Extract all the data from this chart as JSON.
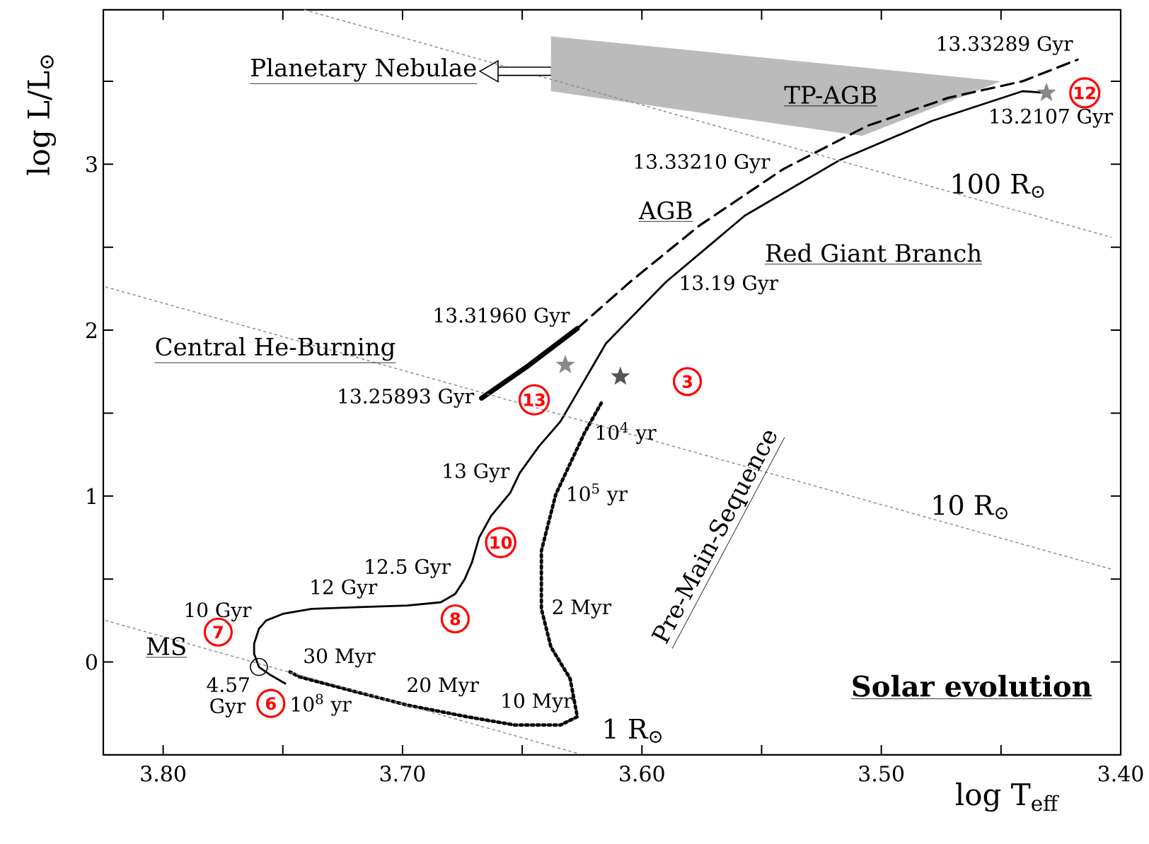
{
  "chart_data": {
    "type": "line",
    "xlabel": "log T$_{eff}$",
    "ylabel": "log L/L$_{⊙}$",
    "xlim": [
      3.825,
      3.4
    ],
    "ylim": [
      -0.56,
      3.93
    ],
    "xticks": [
      {
        "value": 3.8,
        "label": "3.80"
      },
      {
        "value": 3.75,
        "label": null
      },
      {
        "value": 3.7,
        "label": "3.70"
      },
      {
        "value": 3.65,
        "label": null
      },
      {
        "value": 3.6,
        "label": "3.60"
      },
      {
        "value": 3.55,
        "label": null
      },
      {
        "value": 3.5,
        "label": "3.50"
      },
      {
        "value": 3.45,
        "label": null
      },
      {
        "value": 3.4,
        "label": "3.40"
      }
    ],
    "yticks": [
      0,
      {
        "value": 0.5,
        "label": null
      },
      1,
      {
        "value": 1.5,
        "label": null
      },
      2,
      {
        "value": 2.5,
        "label": null
      },
      3,
      {
        "value": 3.5,
        "label": null
      }
    ],
    "series": [
      {
        "color": "#000000",
        "line_style": "solid",
        "x": [
          3.749,
          3.755,
          3.76,
          3.762,
          3.762,
          3.76,
          3.757,
          3.75,
          3.738,
          3.72,
          3.698,
          3.684,
          3.678,
          3.674,
          3.671,
          3.668,
          3.663,
          3.655,
          3.651,
          3.643,
          3.634,
          3.615,
          3.59,
          3.557,
          3.518,
          3.479,
          3.441,
          3.431
        ],
        "values": [
          -0.13,
          -0.08,
          -0.03,
          0.05,
          0.11,
          0.2,
          0.25,
          0.29,
          0.32,
          0.33,
          0.34,
          0.36,
          0.41,
          0.5,
          0.6,
          0.75,
          0.88,
          1.02,
          1.14,
          1.3,
          1.45,
          1.92,
          2.29,
          2.69,
          3.02,
          3.26,
          3.44,
          3.43
        ]
      },
      {
        "color": "#000000",
        "line_style": "solid",
        "x": [
          3.667,
          3.648,
          3.627
        ],
        "values": [
          1.59,
          1.78,
          2.01
        ]
      },
      {
        "color": "#000000",
        "line_style": "dashed",
        "x": [
          3.627,
          3.605,
          3.576,
          3.541,
          3.506,
          3.472,
          3.441,
          3.418
        ],
        "values": [
          2.01,
          2.29,
          2.63,
          2.97,
          3.23,
          3.4,
          3.5,
          3.63
        ]
      },
      {
        "color": "#000000",
        "line_style": "dotted",
        "x": [
          3.617,
          3.624,
          3.636,
          3.642,
          3.642,
          3.638,
          3.63,
          3.627,
          3.634,
          3.653,
          3.673,
          3.698,
          3.722,
          3.743,
          3.747
        ],
        "values": [
          1.56,
          1.38,
          1.01,
          0.67,
          0.32,
          0.09,
          -0.1,
          -0.33,
          -0.38,
          -0.38,
          -0.33,
          -0.26,
          -0.17,
          -0.09,
          -0.06
        ]
      },
      {
        "name": "100 R$_{⊙}$",
        "color": "#888888",
        "line_style": "dotted",
        "x": [
          3.741,
          3.404
        ],
        "values": [
          3.93,
          2.56
        ]
      },
      {
        "name": "10 R$_{⊙}$",
        "color": "#888888",
        "line_style": "dotted",
        "x": [
          3.824,
          3.404
        ],
        "values": [
          2.26,
          0.56
        ]
      },
      {
        "name": "1 R$_{⊙}$",
        "color": "#888888",
        "line_style": "dotted",
        "x": [
          3.824,
          3.627
        ],
        "values": [
          0.25,
          -0.55
        ]
      },
      {
        "type": "area",
        "color": "#bbbbbb",
        "x": [
          3.638,
          3.45,
          3.508,
          3.638
        ],
        "values": [
          3.77,
          3.5,
          3.17,
          3.44
        ]
      },
      {
        "type": "scatter",
        "color": "#888888",
        "marker": "star",
        "x": [
          3.431,
          3.632
        ],
        "values": [
          3.43,
          1.79
        ]
      },
      {
        "type": "scatter",
        "color": "#555555",
        "marker": "star",
        "x": [
          3.609
        ],
        "values": [
          1.72
        ]
      },
      {
        "type": "scatter",
        "color": "#000000",
        "marker": "circle",
        "x": [
          3.76
        ],
        "values": [
          -0.03
        ]
      }
    ],
    "annotations": [
      {
        "text": "Planetary Nebulae",
        "x": 3.638,
        "y": 3.56
      },
      "TP-AGB",
      "AGB",
      "Red Giant Branch",
      "Central He-Burning",
      "Pre-Main-Sequence",
      "MS",
      "Solar evolution",
      {
        "text": "13.33289 Gyr",
        "x": 3.418,
        "y": 3.63
      },
      {
        "text": "13.2107 Gyr",
        "x": 3.431,
        "y": 3.43
      },
      {
        "text": "13.33210 Gyr",
        "x": 3.541,
        "y": 2.97
      },
      {
        "text": "13.19 Gyr",
        "x": 3.59,
        "y": 2.29
      },
      {
        "text": "13.31960 Gyr",
        "x": 3.627,
        "y": 2.01
      },
      {
        "text": "13.25893 Gyr",
        "x": 3.667,
        "y": 1.59
      },
      {
        "text": "13 Gyr",
        "x": 3.651,
        "y": 1.14
      },
      {
        "text": "12.5 Gyr",
        "x": 3.678,
        "y": 0.41
      },
      {
        "text": "12 Gyr",
        "x": 3.72,
        "y": 0.33
      },
      {
        "text": "10 Gyr",
        "x": 3.76,
        "y": 0.2
      },
      {
        "text": "4.57 Gyr",
        "x": 3.76,
        "y": -0.03
      },
      {
        "text": "10$^{8}$ yr",
        "x": 3.749,
        "y": -0.13
      },
      {
        "text": "30 Myr",
        "x": 3.747,
        "y": -0.06
      },
      {
        "text": "20 Myr",
        "x": 3.698,
        "y": -0.26
      },
      {
        "text": "10 Myr",
        "x": 3.627,
        "y": -0.33
      },
      {
        "text": "2 Myr",
        "x": 3.642,
        "y": 0.32
      },
      {
        "text": "10$^{5}$ yr",
        "x": 3.636,
        "y": 1.01
      },
      {
        "text": "10$^{4}$ yr",
        "x": 3.624,
        "y": 1.38
      },
      {
        "text": "3",
        "x": 3.581,
        "y": 1.69
      },
      {
        "text": "6",
        "x": 3.755,
        "y": -0.25
      },
      {
        "text": "7",
        "x": 3.777,
        "y": 0.18
      },
      {
        "text": "8",
        "x": 3.678,
        "y": 0.26
      },
      {
        "text": "10",
        "x": 3.659,
        "y": 0.72
      },
      {
        "text": "12",
        "x": 3.415,
        "y": 3.43
      },
      {
        "text": "13",
        "x": 3.645,
        "y": 1.58
      }
    ]
  }
}
